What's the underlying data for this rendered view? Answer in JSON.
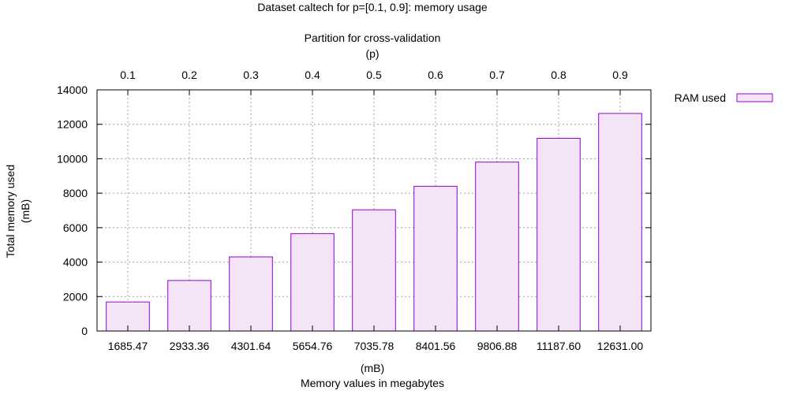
{
  "chart_data": {
    "type": "bar",
    "title": "Dataset caltech for p=[0.1, 0.9]: memory usage",
    "x2label_line1": "Partition for cross-validation",
    "x2label_line2": "(p)",
    "ylabel_line1": "Total memory used",
    "ylabel_line2": "(mB)",
    "xlabel_line1": "(mB)",
    "xlabel_line2": "Memory values in megabytes",
    "legend_position": "top-right outside",
    "grid": true,
    "ylim": [
      0,
      14000
    ],
    "yticks": [
      0,
      2000,
      4000,
      6000,
      8000,
      10000,
      12000,
      14000
    ],
    "top_categories": [
      "0.1",
      "0.2",
      "0.3",
      "0.4",
      "0.5",
      "0.6",
      "0.7",
      "0.8",
      "0.9"
    ],
    "categories": [
      "1685.47",
      "2933.36",
      "4301.64",
      "5654.76",
      "7035.78",
      "8401.56",
      "9806.88",
      "11187.60",
      "12631.00"
    ],
    "series": [
      {
        "name": "RAM used",
        "values": [
          1685.47,
          2933.36,
          4301.64,
          5654.76,
          7035.78,
          8401.56,
          9806.88,
          11187.6,
          12631.0
        ]
      }
    ],
    "colors": {
      "bar_fill": "#f3e4f8",
      "bar_stroke": "#9400d3",
      "grid": "#a0a0a0",
      "axis": "#000000"
    }
  }
}
